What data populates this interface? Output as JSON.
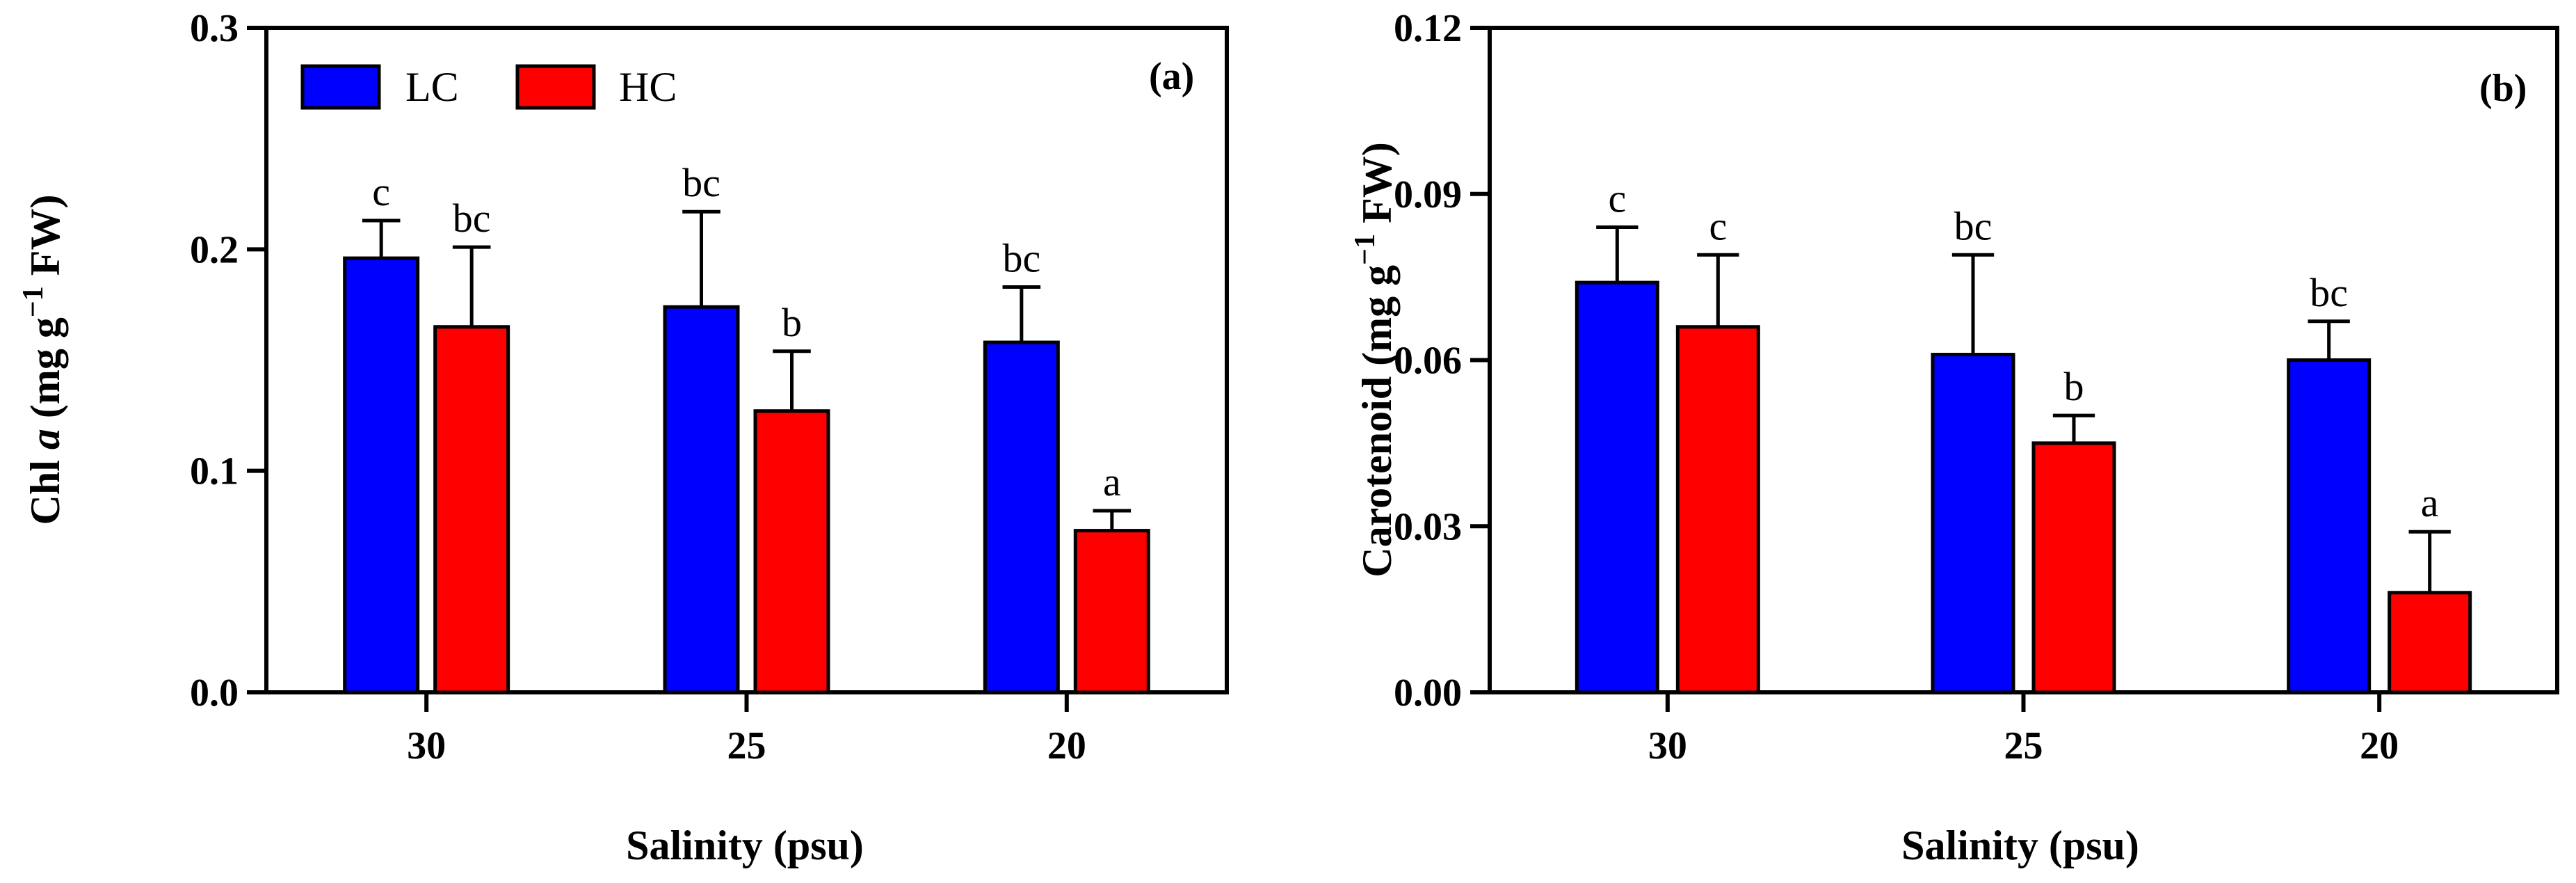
{
  "colors": {
    "LC": "#0000ff",
    "HC": "#ff0000",
    "axis": "#000000",
    "background": "#ffffff"
  },
  "legend": {
    "entries": [
      "LC",
      "HC"
    ]
  },
  "chart_data": [
    {
      "type": "bar",
      "panel_label": "(a)",
      "xlabel": "Salinity (psu)",
      "ylabel_parts": [
        "Chl ",
        "a",
        " (mg g",
        "−1",
        " FW)"
      ],
      "categories": [
        "30",
        "25",
        "20"
      ],
      "yticks": [
        "0.0",
        "0.1",
        "0.2",
        "0.3"
      ],
      "ytick_values": [
        0,
        0.1,
        0.2,
        0.3
      ],
      "ylim": [
        0,
        0.3
      ],
      "series": [
        {
          "name": "LC",
          "values": [
            0.196,
            0.174,
            0.158
          ],
          "errors": [
            0.017,
            0.043,
            0.025
          ],
          "labels": [
            "c",
            "bc",
            "bc"
          ]
        },
        {
          "name": "HC",
          "values": [
            0.165,
            0.127,
            0.073
          ],
          "errors": [
            0.036,
            0.027,
            0.009
          ],
          "labels": [
            "bc",
            "b",
            "a"
          ]
        }
      ]
    },
    {
      "type": "bar",
      "panel_label": "(b)",
      "xlabel": "Salinity (psu)",
      "ylabel_parts": [
        "Carotenoid (mg g",
        "−1",
        " FW)"
      ],
      "categories": [
        "30",
        "25",
        "20"
      ],
      "yticks": [
        "0.00",
        "0.03",
        "0.06",
        "0.09",
        "0.12"
      ],
      "ytick_values": [
        0,
        0.03,
        0.06,
        0.09,
        0.12
      ],
      "ylim": [
        0,
        0.12
      ],
      "series": [
        {
          "name": "LC",
          "values": [
            0.074,
            0.061,
            0.06
          ],
          "errors": [
            0.01,
            0.018,
            0.007
          ],
          "labels": [
            "c",
            "bc",
            "bc"
          ]
        },
        {
          "name": "HC",
          "values": [
            0.066,
            0.045,
            0.018
          ],
          "errors": [
            0.013,
            0.005,
            0.011
          ],
          "labels": [
            "c",
            "b",
            "a"
          ]
        }
      ]
    }
  ]
}
